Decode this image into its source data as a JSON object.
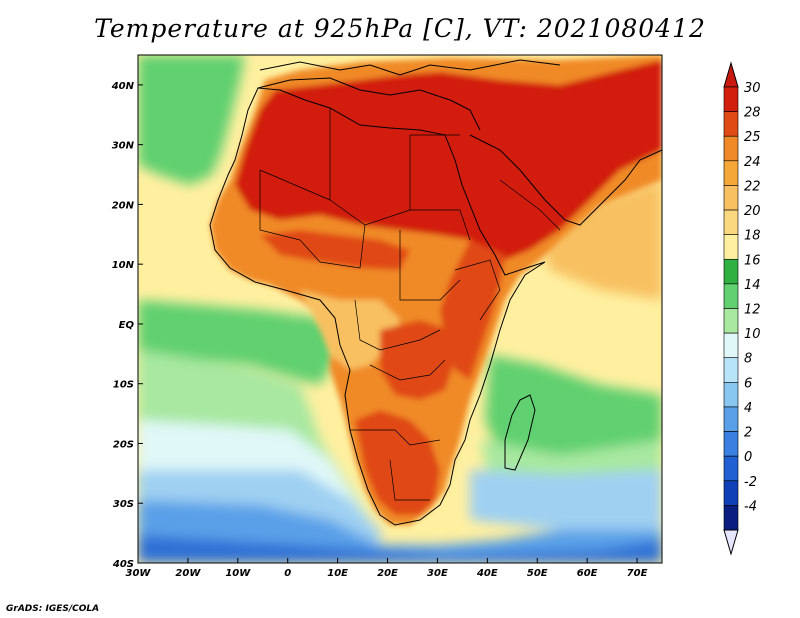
{
  "title": "Temperature at 925hPa [C], VT: 2021080412",
  "footer": "GrADS: IGES/COLA",
  "colors": {
    "ocean_south_deep": "#2f6fd6",
    "ocean_south": "#5aa0e8",
    "ocean_mid": "#9fd0f2",
    "ocean_pale": "#e0f8f8",
    "ocean_green_light": "#a8e8a0",
    "ocean_green": "#60d070",
    "ocean_yellow": "#fff0a0",
    "land_orange_light": "#f8c060",
    "land_orange": "#f08a28",
    "land_red": "#e04a14",
    "land_deep_red": "#d21e0c",
    "border": "#000000"
  },
  "chart_data": {
    "type": "heatmap",
    "variable": "Temperature at 925hPa",
    "units": "C",
    "valid_time": "2021080412",
    "xlim": [
      -30,
      75
    ],
    "ylim": [
      -40,
      45
    ],
    "x_ticks": [
      {
        "value": -30,
        "label": "30W"
      },
      {
        "value": -20,
        "label": "20W"
      },
      {
        "value": -10,
        "label": "10W"
      },
      {
        "value": 0,
        "label": "0"
      },
      {
        "value": 10,
        "label": "10E"
      },
      {
        "value": 20,
        "label": "20E"
      },
      {
        "value": 30,
        "label": "30E"
      },
      {
        "value": 40,
        "label": "40E"
      },
      {
        "value": 50,
        "label": "50E"
      },
      {
        "value": 60,
        "label": "60E"
      },
      {
        "value": 70,
        "label": "70E"
      }
    ],
    "y_ticks": [
      {
        "value": 40,
        "label": "40N"
      },
      {
        "value": 30,
        "label": "30N"
      },
      {
        "value": 20,
        "label": "20N"
      },
      {
        "value": 10,
        "label": "10N"
      },
      {
        "value": 0,
        "label": "EQ"
      },
      {
        "value": -10,
        "label": "10S"
      },
      {
        "value": -20,
        "label": "20S"
      },
      {
        "value": -30,
        "label": "30S"
      },
      {
        "value": -40,
        "label": "40S"
      }
    ],
    "colorbar": {
      "levels": [
        30,
        28,
        25,
        24,
        22,
        20,
        18,
        16,
        14,
        12,
        10,
        8,
        6,
        4,
        2,
        0,
        -2,
        -4
      ],
      "labels": [
        "30",
        "28",
        "25",
        "24",
        "22",
        "20",
        "18",
        "16",
        "14",
        "12",
        "10",
        "8",
        "6",
        "4",
        "2",
        "0",
        "-2",
        "-4"
      ],
      "colors": [
        "#d21e0c",
        "#e04a14",
        "#f08a28",
        "#f5a838",
        "#f8c060",
        "#fad880",
        "#fff0a0",
        "#30b040",
        "#60d070",
        "#a8e8a0",
        "#e0f8f8",
        "#b8e4f8",
        "#88c8f0",
        "#5aa0e8",
        "#3a80e0",
        "#2060d0",
        "#1040b8",
        "#0a1e80"
      ],
      "top_cap_color": "#c81810",
      "bottom_cap_color": "#e6e6ff"
    }
  }
}
